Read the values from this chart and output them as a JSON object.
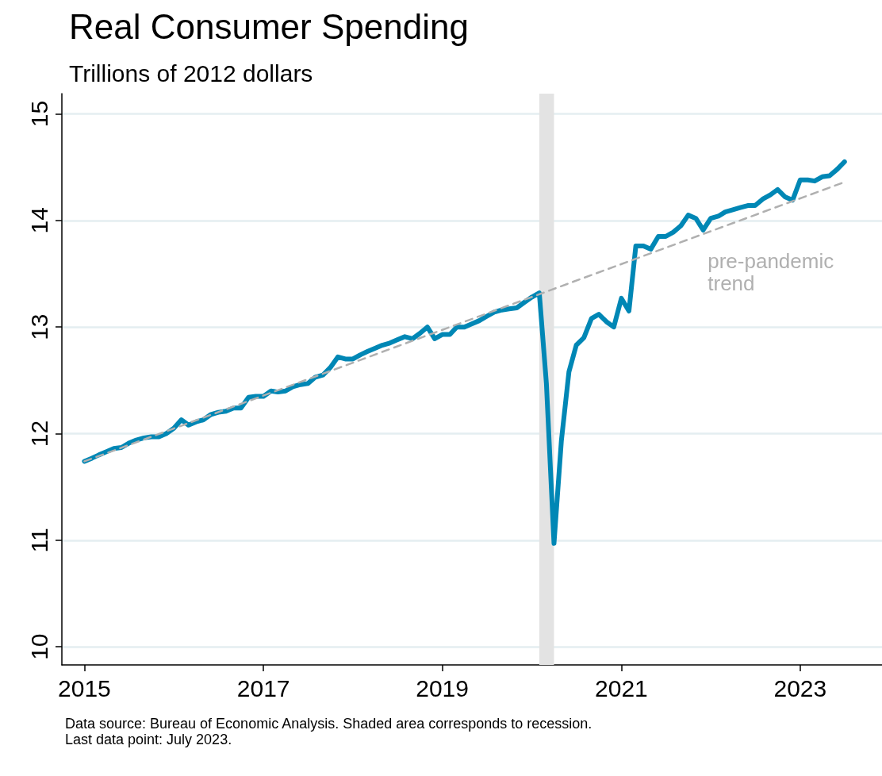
{
  "chart_data": {
    "type": "line",
    "title": "Real Consumer Spending",
    "subtitle": "Trillions of 2012 dollars",
    "annotations": [
      "Data source: Bureau of Economic Analysis. Shaded area corresponds to recession.",
      "Last data point: July 2023."
    ],
    "xlim": [
      "2014-10",
      "2023-12"
    ],
    "xticks": [
      "2015",
      "2017",
      "2019",
      "2021",
      "2023"
    ],
    "ylim": [
      9.83,
      15.19
    ],
    "yticks": [
      10,
      11,
      12,
      13,
      14,
      15
    ],
    "grid": "y",
    "legend": false,
    "marker": "none",
    "bands": [
      {
        "axis": "x",
        "from": "2020-02",
        "to": "2020-04",
        "color": "#e3e3e3"
      }
    ],
    "series": [
      {
        "color": "#0087b5",
        "line_style": "solid",
        "x": [
          "2015-01",
          "2015-02",
          "2015-03",
          "2015-04",
          "2015-05",
          "2015-06",
          "2015-07",
          "2015-08",
          "2015-09",
          "2015-10",
          "2015-11",
          "2015-12",
          "2016-01",
          "2016-02",
          "2016-03",
          "2016-04",
          "2016-05",
          "2016-06",
          "2016-07",
          "2016-08",
          "2016-09",
          "2016-10",
          "2016-11",
          "2016-12",
          "2017-01",
          "2017-02",
          "2017-03",
          "2017-04",
          "2017-05",
          "2017-06",
          "2017-07",
          "2017-08",
          "2017-09",
          "2017-10",
          "2017-11",
          "2017-12",
          "2018-01",
          "2018-02",
          "2018-03",
          "2018-04",
          "2018-05",
          "2018-06",
          "2018-07",
          "2018-08",
          "2018-09",
          "2018-10",
          "2018-11",
          "2018-12",
          "2019-01",
          "2019-02",
          "2019-03",
          "2019-04",
          "2019-05",
          "2019-06",
          "2019-07",
          "2019-08",
          "2019-09",
          "2019-10",
          "2019-11",
          "2019-12",
          "2020-01",
          "2020-02",
          "2020-03",
          "2020-04",
          "2020-05",
          "2020-06",
          "2020-07",
          "2020-08",
          "2020-09",
          "2020-10",
          "2020-11",
          "2020-12",
          "2021-01",
          "2021-02",
          "2021-03",
          "2021-04",
          "2021-05",
          "2021-06",
          "2021-07",
          "2021-08",
          "2021-09",
          "2021-10",
          "2021-11",
          "2021-12",
          "2022-01",
          "2022-02",
          "2022-03",
          "2022-04",
          "2022-05",
          "2022-06",
          "2022-07",
          "2022-08",
          "2022-09",
          "2022-10",
          "2022-11",
          "2022-12",
          "2023-01",
          "2023-02",
          "2023-03",
          "2023-04",
          "2023-05",
          "2023-06",
          "2023-07"
        ],
        "values": [
          11.74,
          11.77,
          11.8,
          11.83,
          11.86,
          11.87,
          11.91,
          11.94,
          11.96,
          11.97,
          11.97,
          12.0,
          12.05,
          12.13,
          12.08,
          12.11,
          12.13,
          12.18,
          12.2,
          12.21,
          12.24,
          12.24,
          12.34,
          12.35,
          12.35,
          12.4,
          12.39,
          12.4,
          12.44,
          12.46,
          12.47,
          12.53,
          12.55,
          12.62,
          12.72,
          12.7,
          12.7,
          12.74,
          12.77,
          12.8,
          12.83,
          12.85,
          12.88,
          12.91,
          12.89,
          12.94,
          13.0,
          12.89,
          12.93,
          12.93,
          13.0,
          13.0,
          13.03,
          13.06,
          13.1,
          13.14,
          13.16,
          13.17,
          13.18,
          13.23,
          13.28,
          13.32,
          12.47,
          10.97,
          11.93,
          12.58,
          12.83,
          12.9,
          13.08,
          13.12,
          13.05,
          13.0,
          13.27,
          13.15,
          13.76,
          13.76,
          13.73,
          13.85,
          13.85,
          13.89,
          13.95,
          14.05,
          14.02,
          13.91,
          14.02,
          14.04,
          14.08,
          14.1,
          14.12,
          14.14,
          14.14,
          14.2,
          14.24,
          14.29,
          14.22,
          14.19,
          14.38,
          14.38,
          14.37,
          14.41,
          14.42,
          14.48,
          14.55
        ]
      },
      {
        "name": "pre-pandemic trend",
        "color": "#b0b0b0",
        "line_style": "dashed",
        "x": [
          "2015-01",
          "2023-07"
        ],
        "values": [
          11.74,
          14.36
        ]
      }
    ]
  }
}
